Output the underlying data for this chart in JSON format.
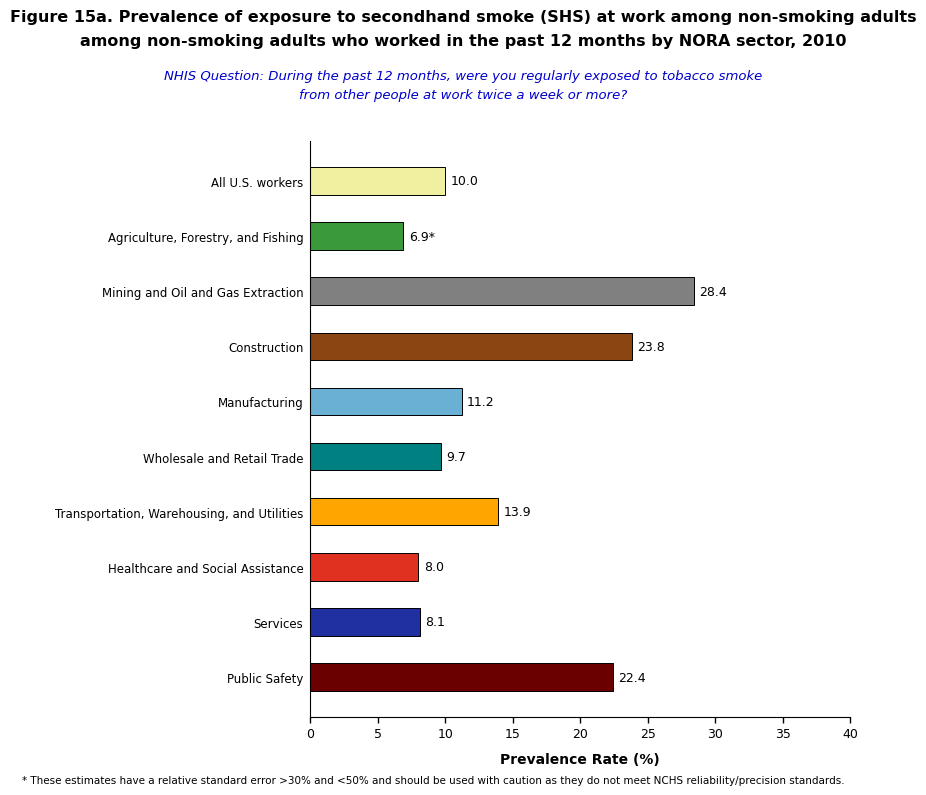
{
  "title_line1": "Figure 15a. Prevalence of exposure to secondhand smoke (SHS) at work among non-smoking adults",
  "title_line2": "among non-smoking adults who worked in the past 12 months by NORA sector, 2010",
  "subtitle": "NHIS Question: During the past 12 months, were you regularly exposed to tobacco smoke\nfrom other people at work twice a week or more?",
  "categories": [
    "All U.S. workers",
    "Agriculture, Forestry, and Fishing",
    "Mining and Oil and Gas Extraction",
    "Construction",
    "Manufacturing",
    "Wholesale and Retail Trade",
    "Transportation, Warehousing, and Utilities",
    "Healthcare and Social Assistance",
    "Services",
    "Public Safety"
  ],
  "values": [
    10.0,
    6.9,
    28.4,
    23.8,
    11.2,
    9.7,
    13.9,
    8.0,
    8.1,
    22.4
  ],
  "labels": [
    "10.0",
    "6.9*",
    "28.4",
    "23.8",
    "11.2",
    "9.7",
    "13.9",
    "8.0",
    "8.1",
    "22.4"
  ],
  "colors": [
    "#f0f0a0",
    "#3a9a3a",
    "#808080",
    "#8B4513",
    "#6ab0d4",
    "#008080",
    "#FFA500",
    "#e03020",
    "#2030a0",
    "#6B0000"
  ],
  "xlabel": "Prevalence Rate (%)",
  "xlim": [
    0,
    40
  ],
  "xticks": [
    0,
    5,
    10,
    15,
    20,
    25,
    30,
    35,
    40
  ],
  "footnote": "* These estimates have a relative standard error >30% and <50% and should be used with caution as they do not meet NCHS reliability/precision standards.",
  "subtitle_color": "#0000CC",
  "title_fontsize": 11.5,
  "subtitle_fontsize": 9.5,
  "bar_height": 0.5
}
